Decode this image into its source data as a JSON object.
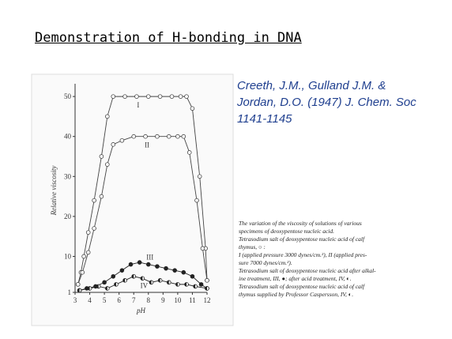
{
  "slide_title": "Demonstration of H-bonding in DNA",
  "citation": [
    "Creeth, J.M., Gulland J.M. &",
    "Jordan, D.O. (1947) J. Chem. Soc",
    "1141-1145"
  ],
  "caption": [
    "The variation of the viscosity of solutions of various",
    "specimens of deoxypentose nucleic acid.",
    "Tetrasodium salt of deoxypentose nucleic acid of calf",
    "thymus, ○ :",
    "I (applied pressure 3000 dynes/cm.²), II (applied pres-",
    "sure 7000 dynes/cm.²).",
    "Tetrasodium salt of deoxypentose nucleic acid after alkal-",
    "ine treatment, III, ●; after acid treatment, IV, ◐.",
    "Tetrasodium salt of deoxypentose nucleic acid of calf",
    "thymus supplied by Professor Caspersson, IV, ◐."
  ],
  "chart_data": {
    "type": "line",
    "x_label": "pH",
    "y_label": "Relative viscosity",
    "xlim": [
      3,
      12
    ],
    "xticks": [
      3,
      4,
      5,
      6,
      7,
      8,
      9,
      10,
      11,
      12
    ],
    "ylim": [
      1,
      52
    ],
    "yticks": [
      1,
      10,
      20,
      30,
      40,
      50
    ],
    "series": [
      {
        "name": "I",
        "color": "#444444",
        "marker": "open",
        "x": [
          3.2,
          3.4,
          3.6,
          3.9,
          4.3,
          4.8,
          5.2,
          5.6,
          6.4,
          7.2,
          8,
          8.8,
          9.6,
          10.2,
          10.6,
          11,
          11.5,
          11.9,
          12
        ],
        "values": [
          3,
          6,
          10,
          16,
          24,
          35,
          45,
          50,
          50,
          50,
          50,
          50,
          50,
          50,
          50,
          47,
          30,
          12,
          4
        ]
      },
      {
        "name": "II",
        "color": "#444444",
        "marker": "open",
        "x": [
          3.2,
          3.5,
          3.9,
          4.3,
          4.8,
          5.2,
          5.6,
          6.2,
          7,
          7.8,
          8.6,
          9.4,
          10,
          10.4,
          10.8,
          11.3,
          11.7,
          12
        ],
        "values": [
          3,
          6,
          11,
          17,
          25,
          33,
          38,
          39,
          40,
          40,
          40,
          40,
          40,
          40,
          36,
          24,
          12,
          4
        ]
      },
      {
        "name": "III",
        "color": "#222222",
        "marker": "filled",
        "x": [
          3.3,
          3.8,
          4.4,
          5,
          5.6,
          6.2,
          6.8,
          7.4,
          8,
          8.6,
          9.2,
          9.8,
          10.4,
          11,
          11.6,
          12
        ],
        "values": [
          1.5,
          2,
          2.5,
          3.5,
          5,
          6.5,
          8,
          8.5,
          8,
          7.5,
          7,
          6.5,
          6,
          5,
          3,
          2
        ]
      },
      {
        "name": "IV",
        "color": "#222222",
        "marker": "half",
        "x": [
          3.3,
          4,
          4.6,
          5.2,
          5.8,
          6.4,
          7,
          7.6,
          8.2,
          8.8,
          9.4,
          10,
          10.6,
          11.2,
          12
        ],
        "values": [
          1.5,
          2,
          2.5,
          2,
          3,
          4,
          5,
          4.5,
          3.5,
          4,
          3.5,
          3,
          3,
          2.5,
          2
        ]
      }
    ]
  }
}
